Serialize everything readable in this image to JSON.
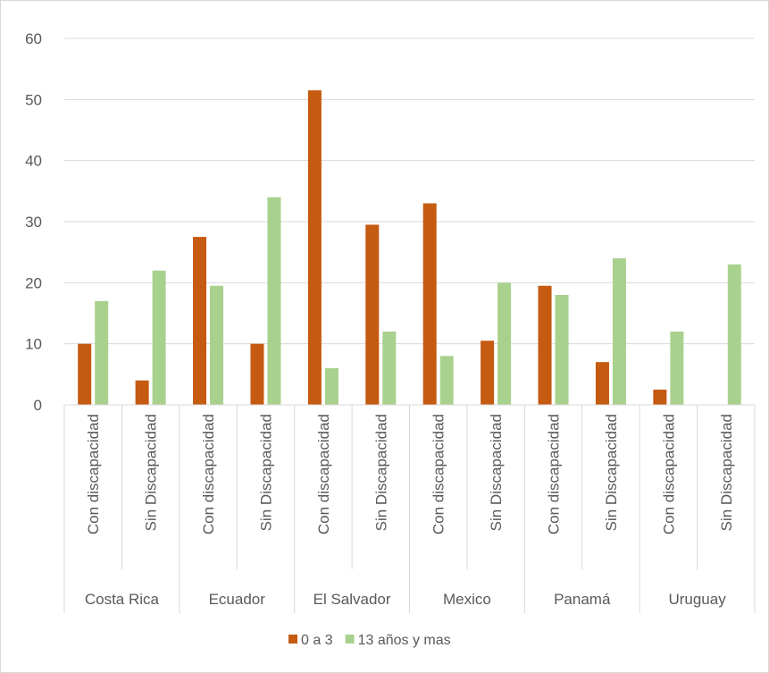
{
  "chart_data": {
    "type": "bar",
    "title": "",
    "xlabel": "",
    "ylabel": "",
    "ylim": [
      0,
      60
    ],
    "yticks": [
      0,
      10,
      20,
      30,
      40,
      50,
      60
    ],
    "grid": true,
    "legend_position": "bottom",
    "groups": [
      "Costa Rica",
      "Ecuador",
      "El Salvador",
      "Mexico",
      "Panamá",
      "Uruguay"
    ],
    "categories": [
      "Con discapacidad",
      "Sin Discapacidad",
      "Con discapacidad",
      "Sin Discapacidad",
      "Con discapacidad",
      "Sin Discapacidad",
      "Con discapacidad",
      "Sin Discapacidad",
      "Con discapacidad",
      "Sin Discapacidad",
      "Con discapacidad",
      "Sin Discapacidad"
    ],
    "series": [
      {
        "name": "0 a 3",
        "color": "#c55a11",
        "values": [
          10,
          4,
          27.5,
          10,
          51.5,
          29.5,
          33,
          10.5,
          19.5,
          7,
          2.5,
          0
        ]
      },
      {
        "name": "13 años y mas",
        "color": "#a9d18e",
        "values": [
          17,
          22,
          19.5,
          34,
          6,
          12,
          8,
          20,
          18,
          24,
          12,
          23
        ]
      }
    ]
  }
}
